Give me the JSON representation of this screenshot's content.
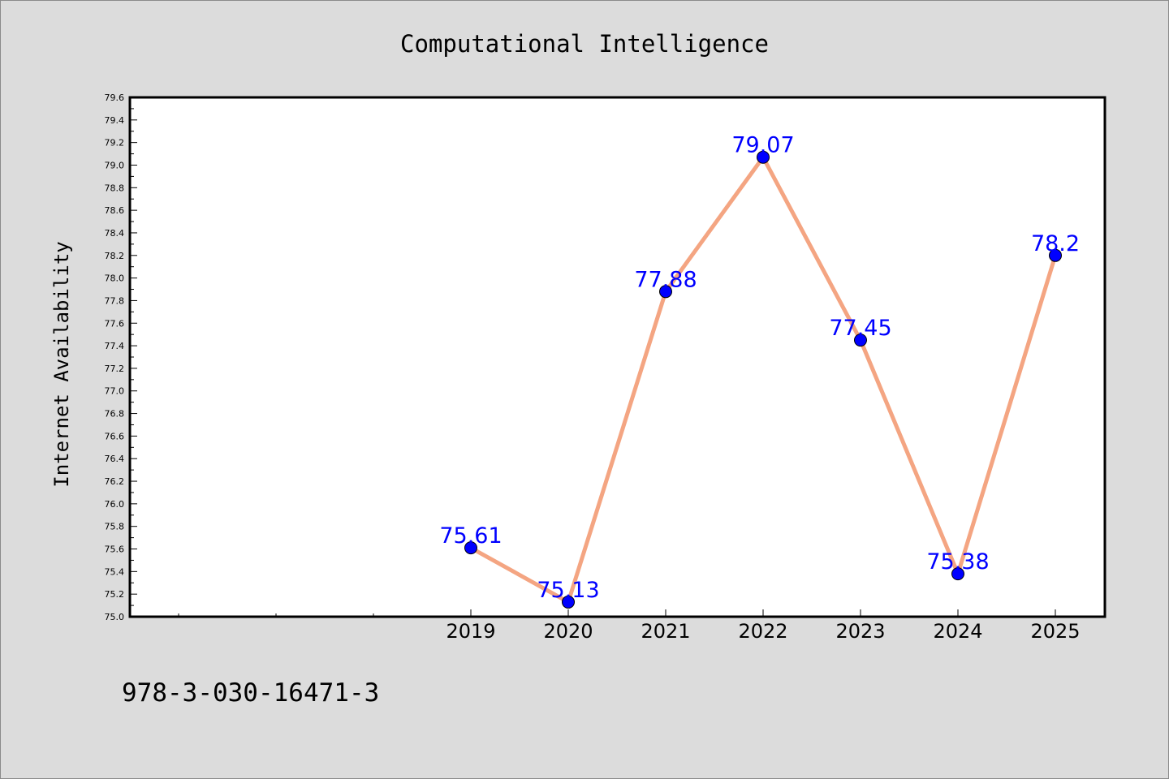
{
  "chart_data": {
    "type": "line",
    "title": "Computational Intelligence",
    "xlabel": "",
    "ylabel": "Internet Availability",
    "categories": [
      "2019",
      "2020",
      "2021",
      "2022",
      "2023",
      "2024",
      "2025"
    ],
    "values": [
      75.61,
      75.13,
      77.88,
      79.07,
      77.45,
      75.38,
      78.2
    ],
    "data_labels": [
      "75.61",
      "75.13",
      "77.88",
      "79.07",
      "77.45",
      "75.38",
      "78.2"
    ],
    "ylim": [
      75.0,
      79.6
    ],
    "yticks": [
      "75.0",
      "75.2",
      "75.4",
      "75.6",
      "75.8",
      "76.0",
      "76.2",
      "76.4",
      "76.6",
      "76.8",
      "77.0",
      "77.2",
      "77.4",
      "77.6",
      "77.8",
      "78.0",
      "78.2",
      "78.4",
      "78.6",
      "78.8",
      "79.0",
      "79.2",
      "79.4",
      "79.6"
    ],
    "grid": false,
    "legend": "none",
    "colors": {
      "line": "#f4a582",
      "marker": "#0000ff",
      "label": "#0000ff",
      "background": "#dcdcdc",
      "plot_background": "#ffffff"
    }
  },
  "footnote": "978-3-030-16471-3"
}
